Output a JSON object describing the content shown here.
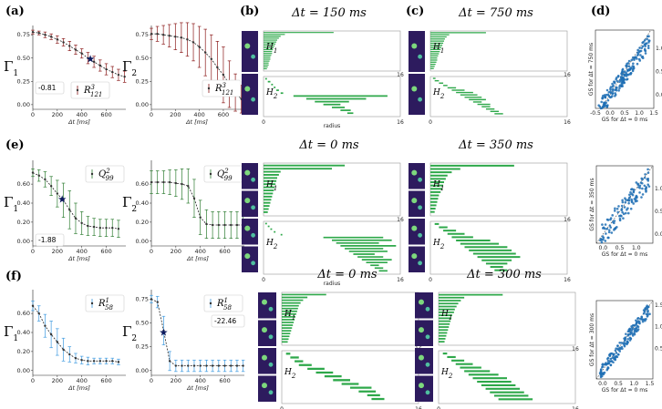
{
  "panel_labels": [
    "(a)",
    "(b)",
    "(c)",
    "(d)",
    "(e)",
    "(f)"
  ],
  "colors": {
    "a": "#8b1a1a",
    "e": "#2e7d32",
    "f": "#3d9ae0",
    "barcode": "#2ea84a",
    "scatter": "#1f6fb4",
    "star": "#0d1b5e"
  },
  "chart_data": [
    {
      "id": "a1",
      "type": "scatter",
      "color": "a",
      "ylabel": "Γ",
      "ysub": "1",
      "xlabel": "Δt [ms]",
      "legend": "R",
      "legend_sup": "3",
      "legend_sub": "121",
      "annot": "-0.81",
      "x": [
        0,
        50,
        100,
        150,
        200,
        250,
        300,
        350,
        400,
        450,
        500,
        550,
        600,
        650,
        700,
        750
      ],
      "y": [
        0.78,
        0.77,
        0.75,
        0.73,
        0.7,
        0.67,
        0.63,
        0.59,
        0.55,
        0.5,
        0.46,
        0.42,
        0.38,
        0.35,
        0.32,
        0.3
      ],
      "err": [
        0.02,
        0.02,
        0.03,
        0.03,
        0.04,
        0.04,
        0.05,
        0.05,
        0.05,
        0.06,
        0.06,
        0.06,
        0.06,
        0.06,
        0.06,
        0.06
      ],
      "star": [
        470,
        0.49
      ],
      "xlim": [
        0,
        760
      ],
      "ylim": [
        -0.05,
        0.85
      ],
      "yticks": [
        0,
        0.25,
        0.5,
        0.75
      ],
      "xticks": [
        0,
        200,
        400,
        600
      ]
    },
    {
      "id": "a2",
      "type": "scatter",
      "color": "a",
      "ylabel": "Γ",
      "ysub": "2",
      "xlabel": "Δt [ms]",
      "legend": "R",
      "legend_sup": "3",
      "legend_sub": "121",
      "x": [
        0,
        50,
        100,
        150,
        200,
        250,
        300,
        350,
        400,
        450,
        500,
        550,
        600,
        650,
        700,
        750
      ],
      "y": [
        0.76,
        0.76,
        0.75,
        0.74,
        0.73,
        0.72,
        0.7,
        0.67,
        0.62,
        0.56,
        0.49,
        0.4,
        0.32,
        0.22,
        0.13,
        0.06
      ],
      "err": [
        0.06,
        0.08,
        0.1,
        0.12,
        0.14,
        0.16,
        0.18,
        0.2,
        0.22,
        0.25,
        0.26,
        0.28,
        0.3,
        0.25,
        0.2,
        0.15
      ],
      "xlim": [
        0,
        760
      ],
      "ylim": [
        -0.05,
        0.85
      ],
      "yticks": [
        0,
        0.25,
        0.5,
        0.75
      ],
      "xticks": [
        0,
        200,
        400,
        600
      ]
    },
    {
      "id": "e1",
      "type": "scatter",
      "color": "e",
      "ylabel": "Γ",
      "ysub": "1",
      "xlabel": "Δt [ms]",
      "legend": "Q",
      "legend_sup": "2",
      "legend_sub": "99",
      "annot": "-1.88",
      "x": [
        0,
        50,
        100,
        150,
        200,
        250,
        300,
        350,
        400,
        450,
        500,
        550,
        600,
        650,
        700
      ],
      "y": [
        0.72,
        0.69,
        0.65,
        0.58,
        0.5,
        0.43,
        0.33,
        0.24,
        0.19,
        0.16,
        0.15,
        0.14,
        0.14,
        0.14,
        0.13
      ],
      "err": [
        0.04,
        0.06,
        0.08,
        0.1,
        0.14,
        0.18,
        0.2,
        0.16,
        0.12,
        0.1,
        0.09,
        0.09,
        0.09,
        0.09,
        0.09
      ],
      "star": [
        240,
        0.44
      ],
      "xlim": [
        0,
        760
      ],
      "ylim": [
        -0.05,
        0.85
      ],
      "yticks": [
        0,
        0.2,
        0.4,
        0.6
      ],
      "xticks": [
        0,
        200,
        400,
        600
      ]
    },
    {
      "id": "e2",
      "type": "scatter",
      "color": "e",
      "ylabel": "Γ",
      "ysub": "2",
      "xlabel": "Δt [ms]",
      "legend": "Q",
      "legend_sup": "2",
      "legend_sub": "99",
      "x": [
        0,
        50,
        100,
        150,
        200,
        250,
        300,
        350,
        400,
        450,
        500,
        550,
        600,
        650,
        700,
        750
      ],
      "y": [
        0.62,
        0.62,
        0.62,
        0.62,
        0.61,
        0.6,
        0.58,
        0.45,
        0.25,
        0.18,
        0.17,
        0.17,
        0.17,
        0.17,
        0.17,
        0.17
      ],
      "err": [
        0.12,
        0.12,
        0.12,
        0.13,
        0.14,
        0.16,
        0.18,
        0.2,
        0.18,
        0.15,
        0.14,
        0.14,
        0.14,
        0.14,
        0.14,
        0.14
      ],
      "xlim": [
        0,
        760
      ],
      "ylim": [
        -0.05,
        0.85
      ],
      "yticks": [
        0,
        0.2,
        0.4,
        0.6
      ],
      "xticks": [
        0,
        200,
        400,
        600
      ]
    },
    {
      "id": "f1",
      "type": "scatter",
      "color": "f",
      "ylabel": "Γ",
      "ysub": "1",
      "xlabel": "Δt [ms]",
      "legend": "R",
      "legend_sup": "1",
      "legend_sub": "58",
      "x": [
        0,
        50,
        100,
        150,
        200,
        250,
        300,
        350,
        400,
        450,
        500,
        550,
        600,
        650,
        700
      ],
      "y": [
        0.68,
        0.6,
        0.47,
        0.38,
        0.3,
        0.22,
        0.17,
        0.13,
        0.11,
        0.1,
        0.1,
        0.1,
        0.1,
        0.1,
        0.09
      ],
      "err": [
        0.05,
        0.08,
        0.12,
        0.14,
        0.14,
        0.12,
        0.08,
        0.05,
        0.04,
        0.04,
        0.03,
        0.03,
        0.03,
        0.03,
        0.03
      ],
      "xlim": [
        0,
        760
      ],
      "ylim": [
        -0.05,
        0.85
      ],
      "yticks": [
        0,
        0.2,
        0.4,
        0.6
      ],
      "xticks": [
        0,
        200,
        400,
        600
      ]
    },
    {
      "id": "f2",
      "type": "scatter",
      "color": "f",
      "ylabel": "Γ",
      "ysub": "2",
      "xlabel": "Δt [ms]",
      "legend": "R",
      "legend_sup": "1",
      "legend_sub": "58",
      "annot": "-22.46",
      "x": [
        0,
        50,
        100,
        150,
        200,
        250,
        300,
        350,
        400,
        450,
        500,
        550,
        600,
        650,
        700,
        750
      ],
      "y": [
        0.75,
        0.72,
        0.42,
        0.1,
        0.05,
        0.05,
        0.05,
        0.05,
        0.05,
        0.05,
        0.05,
        0.05,
        0.05,
        0.05,
        0.05,
        0.05
      ],
      "err": [
        0.04,
        0.06,
        0.15,
        0.1,
        0.06,
        0.06,
        0.06,
        0.06,
        0.06,
        0.06,
        0.06,
        0.06,
        0.06,
        0.06,
        0.06,
        0.06
      ],
      "star": [
        100,
        0.4
      ],
      "xlim": [
        0,
        760
      ],
      "ylim": [
        -0.05,
        0.85
      ],
      "yticks": [
        0,
        0.25,
        0.5,
        0.75
      ],
      "xticks": [
        0,
        200,
        400,
        600
      ]
    }
  ],
  "barcodes": [
    {
      "id": "b",
      "title": "Δt = 150 ms",
      "xlabel": "radius",
      "xmin": "0",
      "xmax": "16",
      "h1": "H",
      "h1sub": "1",
      "h2": "H",
      "h2sub": "2",
      "bars1": [
        [
          0,
          8.2
        ],
        [
          0,
          2.5
        ],
        [
          0,
          2
        ],
        [
          0,
          1.8
        ],
        [
          0,
          1.6
        ],
        [
          0,
          1.5
        ],
        [
          0,
          1.4
        ],
        [
          0,
          1.3
        ],
        [
          0,
          1.2
        ],
        [
          0,
          1.1
        ],
        [
          0,
          1
        ],
        [
          0,
          1
        ],
        [
          0,
          0.9
        ],
        [
          0,
          0.8
        ],
        [
          0,
          0.8
        ],
        [
          0,
          0.7
        ],
        [
          0,
          0.6
        ],
        [
          0,
          0.6
        ],
        [
          0,
          0.5
        ],
        [
          0,
          0.4
        ]
      ],
      "bars2": [
        [
          0.2,
          0.4
        ],
        [
          0.5,
          0.8
        ],
        [
          0.9,
          1.1
        ],
        [
          1.2,
          1.4
        ],
        [
          1.5,
          1.8
        ],
        [
          2,
          2.3
        ],
        [
          3.5,
          14.5
        ],
        [
          5,
          12
        ],
        [
          6,
          10
        ],
        [
          7,
          9
        ],
        [
          8,
          9.5
        ],
        [
          9,
          10.2
        ],
        [
          9.8,
          10.5
        ]
      ]
    },
    {
      "id": "c",
      "title": "Δt = 750 ms",
      "xlabel": "",
      "xmin": "0",
      "xmax": "16",
      "h1": "H",
      "h1sub": "1",
      "h2": "H",
      "h2sub": "2",
      "bars1": [
        [
          0,
          6.5
        ],
        [
          0,
          2.2
        ],
        [
          0,
          1.9
        ],
        [
          0,
          1.7
        ],
        [
          0,
          1.6
        ],
        [
          0,
          1.5
        ],
        [
          0,
          1.4
        ],
        [
          0,
          1.3
        ],
        [
          0,
          1.2
        ],
        [
          0,
          1.1
        ],
        [
          0,
          1
        ],
        [
          0,
          0.9
        ],
        [
          0,
          0.8
        ],
        [
          0,
          0.8
        ],
        [
          0,
          0.7
        ],
        [
          0,
          0.6
        ],
        [
          0,
          0.5
        ],
        [
          0,
          0.4
        ]
      ],
      "bars2": [
        [
          0.3,
          0.6
        ],
        [
          0.5,
          1
        ],
        [
          1,
          1.5
        ],
        [
          1.5,
          2
        ],
        [
          2,
          3
        ],
        [
          2.5,
          4
        ],
        [
          3,
          5
        ],
        [
          3.5,
          5.5
        ],
        [
          4,
          6
        ],
        [
          4.5,
          6.5
        ],
        [
          5,
          6
        ],
        [
          5.5,
          7
        ],
        [
          6,
          7
        ],
        [
          6.5,
          7.5
        ],
        [
          7,
          8
        ],
        [
          7.5,
          8.5
        ]
      ]
    },
    {
      "id": "e-b",
      "title": "Δt = 0 ms",
      "xlabel": "radius",
      "xmin": "0",
      "xmax": "16",
      "h1": "H",
      "h1sub": "1",
      "h2": "H",
      "h2sub": "2",
      "bars1": [
        [
          0,
          9.5
        ],
        [
          0,
          8
        ],
        [
          0,
          2
        ],
        [
          0,
          1.8
        ],
        [
          0,
          1.6
        ],
        [
          0,
          1.5
        ],
        [
          0,
          1.4
        ],
        [
          0,
          1.3
        ],
        [
          0,
          1.2
        ],
        [
          0,
          1.1
        ],
        [
          0,
          1
        ],
        [
          0,
          0.9
        ],
        [
          0,
          0.8
        ],
        [
          0,
          0.7
        ],
        [
          0,
          0.6
        ],
        [
          0,
          0.5
        ]
      ],
      "bars2": [
        [
          0.2,
          0.4
        ],
        [
          0.5,
          0.7
        ],
        [
          0.8,
          1
        ],
        [
          1.2,
          1.4
        ],
        [
          2,
          2.2
        ],
        [
          7,
          14
        ],
        [
          8,
          15
        ],
        [
          8.5,
          13.5
        ],
        [
          9,
          15.5
        ],
        [
          9.5,
          14
        ],
        [
          10,
          14.5
        ],
        [
          10.5,
          13
        ],
        [
          11,
          14
        ],
        [
          11.5,
          15
        ],
        [
          12,
          14.5
        ],
        [
          12.5,
          13.5
        ],
        [
          13,
          14
        ],
        [
          13.5,
          14.5
        ]
      ]
    },
    {
      "id": "e-c",
      "title": "Δt = 350 ms",
      "xlabel": "",
      "xmin": "0",
      "xmax": "16",
      "h1": "H",
      "h1sub": "1",
      "h2": "H",
      "h2sub": "2",
      "bars1": [
        [
          0,
          9.8
        ],
        [
          0,
          3.5
        ],
        [
          0,
          2.5
        ],
        [
          0,
          2
        ],
        [
          0,
          1.8
        ],
        [
          0,
          1.6
        ],
        [
          0,
          1.5
        ],
        [
          0,
          1.4
        ],
        [
          0,
          1.2
        ],
        [
          0,
          1
        ],
        [
          0,
          0.9
        ],
        [
          0,
          0.8
        ],
        [
          0,
          0.7
        ],
        [
          0,
          0.6
        ],
        [
          0,
          0.5
        ]
      ],
      "bars2": [
        [
          0.5,
          1
        ],
        [
          1,
          2
        ],
        [
          1.5,
          3
        ],
        [
          2,
          4
        ],
        [
          2.5,
          5
        ],
        [
          3,
          7
        ],
        [
          3.5,
          8
        ],
        [
          4,
          9
        ],
        [
          4.5,
          9.5
        ],
        [
          5,
          10
        ],
        [
          5.5,
          10.5
        ],
        [
          6,
          9.5
        ],
        [
          6.5,
          9
        ],
        [
          7,
          8.5
        ],
        [
          7.5,
          9
        ]
      ]
    },
    {
      "id": "f-b",
      "title": "Δt = 0 ms",
      "xlabel": "radius",
      "xmin": "0",
      "xmax": "16",
      "h1": "H",
      "h1sub": "1",
      "h2": "H",
      "h2sub": "2",
      "bars1": [
        [
          0,
          5.2
        ],
        [
          0,
          3
        ],
        [
          0,
          2.5
        ],
        [
          0,
          2.2
        ],
        [
          0,
          2
        ],
        [
          0,
          1.9
        ],
        [
          0,
          1.8
        ],
        [
          0,
          1.7
        ],
        [
          0,
          1.6
        ],
        [
          0,
          1.5
        ],
        [
          0,
          1.4
        ],
        [
          0,
          1.3
        ],
        [
          0,
          1.2
        ],
        [
          0,
          1.1
        ],
        [
          0,
          1
        ],
        [
          0,
          0.9
        ],
        [
          0,
          0.8
        ],
        [
          0,
          0.7
        ]
      ],
      "bars2": [
        [
          0.5,
          1
        ],
        [
          1,
          2
        ],
        [
          1.5,
          2.5
        ],
        [
          2,
          3.5
        ],
        [
          3,
          5
        ],
        [
          4,
          6
        ],
        [
          5,
          7
        ],
        [
          6,
          8
        ],
        [
          7,
          9
        ],
        [
          8,
          10.5
        ],
        [
          9,
          11
        ],
        [
          10,
          11.5
        ],
        [
          10.5,
          12
        ]
      ]
    },
    {
      "id": "f-c",
      "title": "Δt = 300 ms",
      "xlabel": "",
      "xmin": "0",
      "xmax": "16",
      "h1": "H",
      "h1sub": "1",
      "h2": "H",
      "h2sub": "2",
      "bars1": [
        [
          0,
          7.5
        ],
        [
          0,
          3
        ],
        [
          0,
          2.6
        ],
        [
          0,
          2.3
        ],
        [
          0,
          2.1
        ],
        [
          0,
          1.9
        ],
        [
          0,
          1.8
        ],
        [
          0,
          1.6
        ],
        [
          0,
          1.5
        ],
        [
          0,
          1.4
        ],
        [
          0,
          1.3
        ],
        [
          0,
          1.2
        ],
        [
          0,
          1.1
        ],
        [
          0,
          1
        ],
        [
          0,
          0.9
        ],
        [
          0,
          0.8
        ],
        [
          0,
          0.7
        ]
      ],
      "bars2": [
        [
          0.5,
          1
        ],
        [
          1,
          2
        ],
        [
          1.5,
          3
        ],
        [
          2,
          4
        ],
        [
          2.5,
          5
        ],
        [
          3,
          6
        ],
        [
          3.5,
          7
        ],
        [
          4,
          8
        ],
        [
          4.5,
          8.5
        ],
        [
          5,
          9
        ],
        [
          5.5,
          9.5
        ],
        [
          6,
          10
        ],
        [
          6.5,
          10.5
        ],
        [
          7,
          11
        ]
      ]
    }
  ],
  "scatters": [
    {
      "id": "d1",
      "xlabel": "GS for Δt = 0 ms",
      "ylabel": "GS for Δt = 750 ms",
      "xticks": [
        "-0.5",
        "0.0",
        "0.5",
        "1.0",
        "1.5"
      ],
      "yticks": [
        "0.0",
        "0.5",
        "1.0"
      ],
      "xlim": [
        -0.5,
        1.5
      ],
      "ylim": [
        -0.3,
        1.4
      ],
      "seed": 7,
      "n": 200,
      "slope": 0.85,
      "spread": 0.18
    },
    {
      "id": "d2",
      "xlabel": "GS for Δt = 0 ms",
      "ylabel": "GS for Δt = 350 ms",
      "xticks": [
        "0.0",
        "0.5",
        "1.0"
      ],
      "yticks": [
        "0.0",
        "0.5",
        "1.0"
      ],
      "xlim": [
        -0.2,
        1.5
      ],
      "ylim": [
        -0.2,
        1.5
      ],
      "seed": 11,
      "n": 120,
      "slope": 0.9,
      "spread": 0.25
    },
    {
      "id": "d3",
      "xlabel": "GS for Δt = 0 ms",
      "ylabel": "GS for Δt = 300 ms",
      "xticks": [
        "0.0",
        "0.5",
        "1.0",
        "1.5"
      ],
      "yticks": [
        "0.5",
        "1.0",
        "1.5"
      ],
      "xlim": [
        -0.2,
        1.6
      ],
      "ylim": [
        -0.2,
        1.6
      ],
      "seed": 3,
      "n": 170,
      "slope": 0.95,
      "spread": 0.15
    }
  ]
}
